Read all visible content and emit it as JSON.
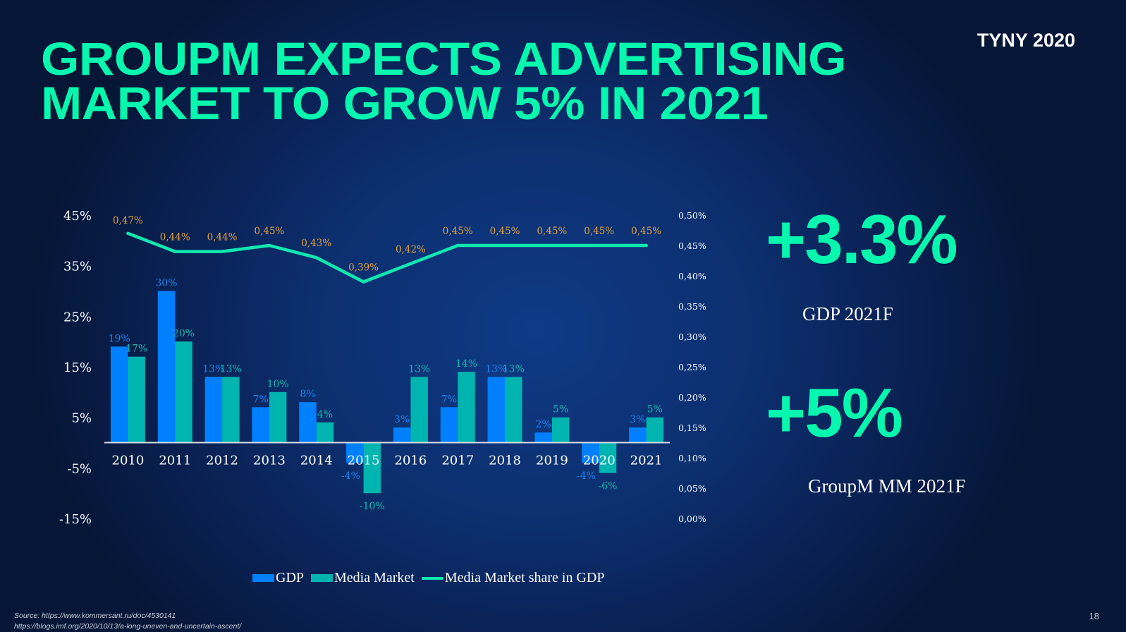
{
  "slide": {
    "title_line1": "GROUPM EXPECTS ADVERTISING",
    "title_line2": "MARKET TO GROW 5% IN 2021",
    "brand": "TYNY 2020",
    "page_number": "18",
    "source_line1": "Source: https://www.kommersant.ru/doc/4530141",
    "source_line2": "https://blogs.imf.org/2020/10/13/a-long-uneven-and-uncertain-ascent/"
  },
  "stats": [
    {
      "value": "+3.3%",
      "label": "GDP 2021F"
    },
    {
      "value": "+5%",
      "label": "GroupM MM 2021F"
    }
  ],
  "colors": {
    "accent": "#06f7ad",
    "gdp": "#0080ff",
    "media_market": "#00b4b0",
    "share_line": "#10e8b0",
    "share_label": "#e3a23a",
    "gdp_label": "#1a84f0",
    "media_label": "#14b8b0"
  },
  "chart_data": {
    "type": "bar",
    "title": "",
    "categories": [
      "2010",
      "2011",
      "2012",
      "2013",
      "2014",
      "2015",
      "2016",
      "2017",
      "2018",
      "2019",
      "2020",
      "2021"
    ],
    "series": [
      {
        "name": "GDP",
        "type": "bar",
        "axis": "left",
        "values": [
          19,
          30,
          13,
          7,
          8,
          -4,
          3,
          7,
          13,
          2,
          -4,
          3
        ],
        "labels": [
          "19%",
          "30%",
          "13%",
          "7%",
          "8%",
          "-4%",
          "3%",
          "7%",
          "13%",
          "2%",
          "-4%",
          "3%"
        ]
      },
      {
        "name": "Media Market",
        "type": "bar",
        "axis": "left",
        "values": [
          17,
          20,
          13,
          10,
          4,
          -10,
          13,
          14,
          13,
          5,
          -6,
          5
        ],
        "labels": [
          "17%",
          "20%",
          "13%",
          "10%",
          "4%",
          "-10%",
          "13%",
          "14%",
          "13%",
          "5%",
          "-6%",
          "5%"
        ]
      },
      {
        "name": "Media Market share in GDP",
        "type": "line",
        "axis": "right",
        "values": [
          0.47,
          0.44,
          0.44,
          0.45,
          0.43,
          0.39,
          0.42,
          0.45,
          0.45,
          0.45,
          0.45,
          0.45
        ],
        "labels": [
          "0,47%",
          "0,44%",
          "0,44%",
          "0,45%",
          "0,43%",
          "0,39%",
          "0,42%",
          "0,45%",
          "0,45%",
          "0,45%",
          "0,45%",
          "0,45%"
        ]
      }
    ],
    "y_left": {
      "min": -15,
      "max": 45,
      "step": 10,
      "ticks": [
        "45%",
        "35%",
        "25%",
        "15%",
        "5%",
        "-5%",
        "-15%"
      ]
    },
    "y_right": {
      "min": 0.0,
      "max": 0.5,
      "step": 0.05,
      "ticks": [
        "0,50%",
        "0,45%",
        "0,40%",
        "0,35%",
        "0,30%",
        "0,25%",
        "0,20%",
        "0,15%",
        "0,10%",
        "0,05%",
        "0,00%"
      ]
    },
    "xlabel": "",
    "ylabel": "",
    "grid": false,
    "legend": {
      "position": "bottom",
      "entries": [
        "GDP",
        "Media Market",
        "Media Market share in GDP"
      ]
    }
  }
}
